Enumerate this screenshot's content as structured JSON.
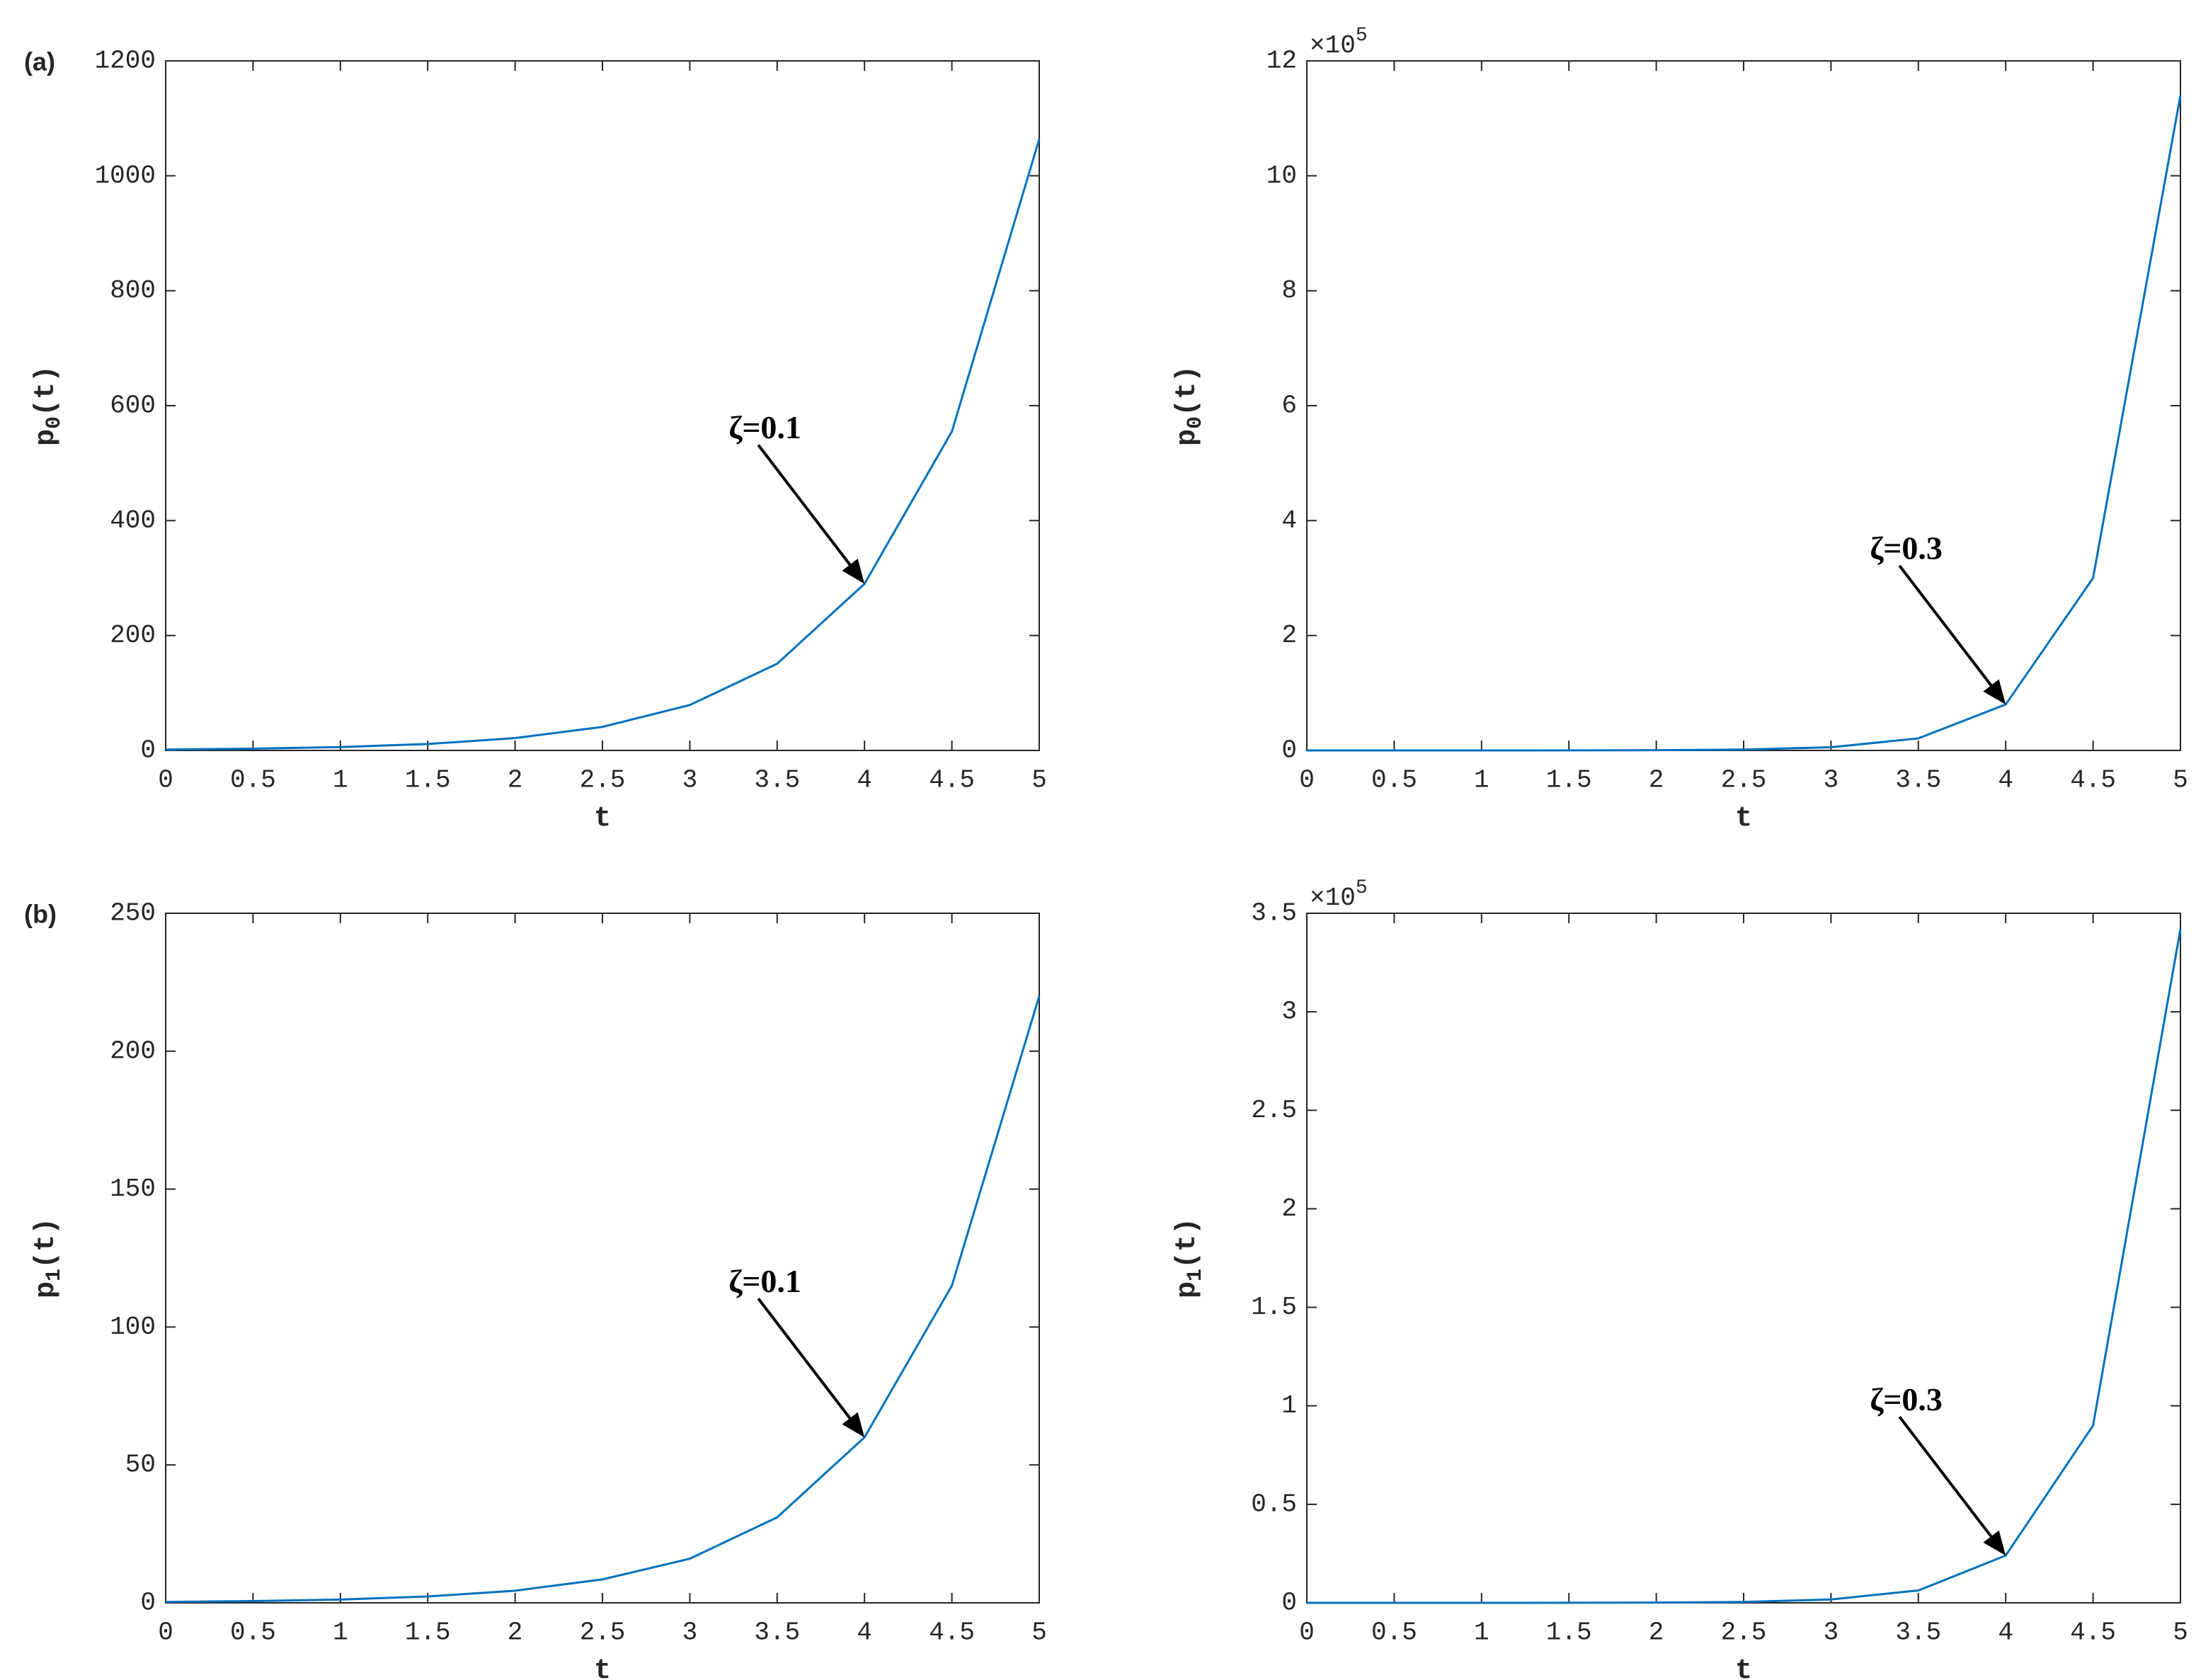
{
  "chart_data": [
    {
      "type": "line",
      "panel_label": "(a)",
      "xlabel": "t",
      "ylabel": {
        "base": "p",
        "sub": "0",
        "rest": "(t)"
      },
      "x": [
        0,
        0.5,
        1,
        1.5,
        2,
        2.5,
        3,
        3.5,
        4,
        4.5,
        5
      ],
      "series": [
        {
          "color": "#0072bd",
          "values": [
            1.6,
            3.1,
            5.9,
            11.2,
            21.5,
            41,
            79,
            151,
            290,
            555,
            1064
          ]
        }
      ],
      "xlim": [
        0,
        5
      ],
      "xticks": [
        0,
        0.5,
        1,
        1.5,
        2,
        2.5,
        3,
        3.5,
        4,
        4.5,
        5
      ],
      "ylim": [
        0,
        1200
      ],
      "yticks": [
        0,
        200,
        400,
        600,
        800,
        1000,
        1200
      ],
      "annotations": [
        {
          "text": "ζ=0.1",
          "x": 4,
          "y": 290
        }
      ]
    },
    {
      "type": "line",
      "xlabel": "t",
      "ylabel": {
        "base": "p",
        "sub": "0",
        "rest": "(t)"
      },
      "multiplier": {
        "base": "×10",
        "exponent": "5"
      },
      "x": [
        0,
        0.5,
        1,
        1.5,
        2,
        2.5,
        3,
        3.5,
        4,
        4.5,
        5
      ],
      "series": [
        {
          "color": "#0072bd",
          "values": [
            0,
            0.0001,
            0.0003,
            0.001,
            0.004,
            0.015,
            0.056,
            0.21,
            0.8,
            3.0,
            11.4
          ]
        }
      ],
      "xlim": [
        0,
        5
      ],
      "xticks": [
        0,
        0.5,
        1,
        1.5,
        2,
        2.5,
        3,
        3.5,
        4,
        4.5,
        5
      ],
      "ylim": [
        0,
        12
      ],
      "yticks": [
        0,
        2,
        4,
        6,
        8,
        10,
        12
      ],
      "annotations": [
        {
          "text": "ζ=0.3",
          "x": 4,
          "y": 0.8
        }
      ]
    },
    {
      "type": "line",
      "panel_label": "(b)",
      "xlabel": "t",
      "ylabel": {
        "base": "p",
        "sub": "1",
        "rest": "(t)"
      },
      "x": [
        0,
        0.5,
        1,
        1.5,
        2,
        2.5,
        3,
        3.5,
        4,
        4.5,
        5
      ],
      "series": [
        {
          "color": "#0072bd",
          "values": [
            0.33,
            0.64,
            1.2,
            2.3,
            4.4,
            8.5,
            16,
            31,
            60,
            115,
            220
          ]
        }
      ],
      "xlim": [
        0,
        5
      ],
      "xticks": [
        0,
        0.5,
        1,
        1.5,
        2,
        2.5,
        3,
        3.5,
        4,
        4.5,
        5
      ],
      "ylim": [
        0,
        250
      ],
      "yticks": [
        0,
        50,
        100,
        150,
        200,
        250
      ],
      "annotations": [
        {
          "text": "ζ=0.1",
          "x": 4,
          "y": 60
        }
      ]
    },
    {
      "type": "line",
      "xlabel": "t",
      "ylabel": {
        "base": "p",
        "sub": "1",
        "rest": "(t)"
      },
      "multiplier": {
        "base": "×10",
        "exponent": "5"
      },
      "x": [
        0,
        0.5,
        1,
        1.5,
        2,
        2.5,
        3,
        3.5,
        4,
        4.5,
        5
      ],
      "series": [
        {
          "color": "#0072bd",
          "values": [
            0,
            0,
            0.0001,
            0.0003,
            0.0012,
            0.0045,
            0.017,
            0.063,
            0.24,
            0.9,
            3.42
          ]
        }
      ],
      "xlim": [
        0,
        5
      ],
      "xticks": [
        0,
        0.5,
        1,
        1.5,
        2,
        2.5,
        3,
        3.5,
        4,
        4.5,
        5
      ],
      "ylim": [
        0,
        3.5
      ],
      "yticks": [
        0,
        0.5,
        1,
        1.5,
        2,
        2.5,
        3,
        3.5
      ],
      "annotations": [
        {
          "text": "ζ=0.3",
          "x": 4,
          "y": 0.24
        }
      ]
    }
  ]
}
